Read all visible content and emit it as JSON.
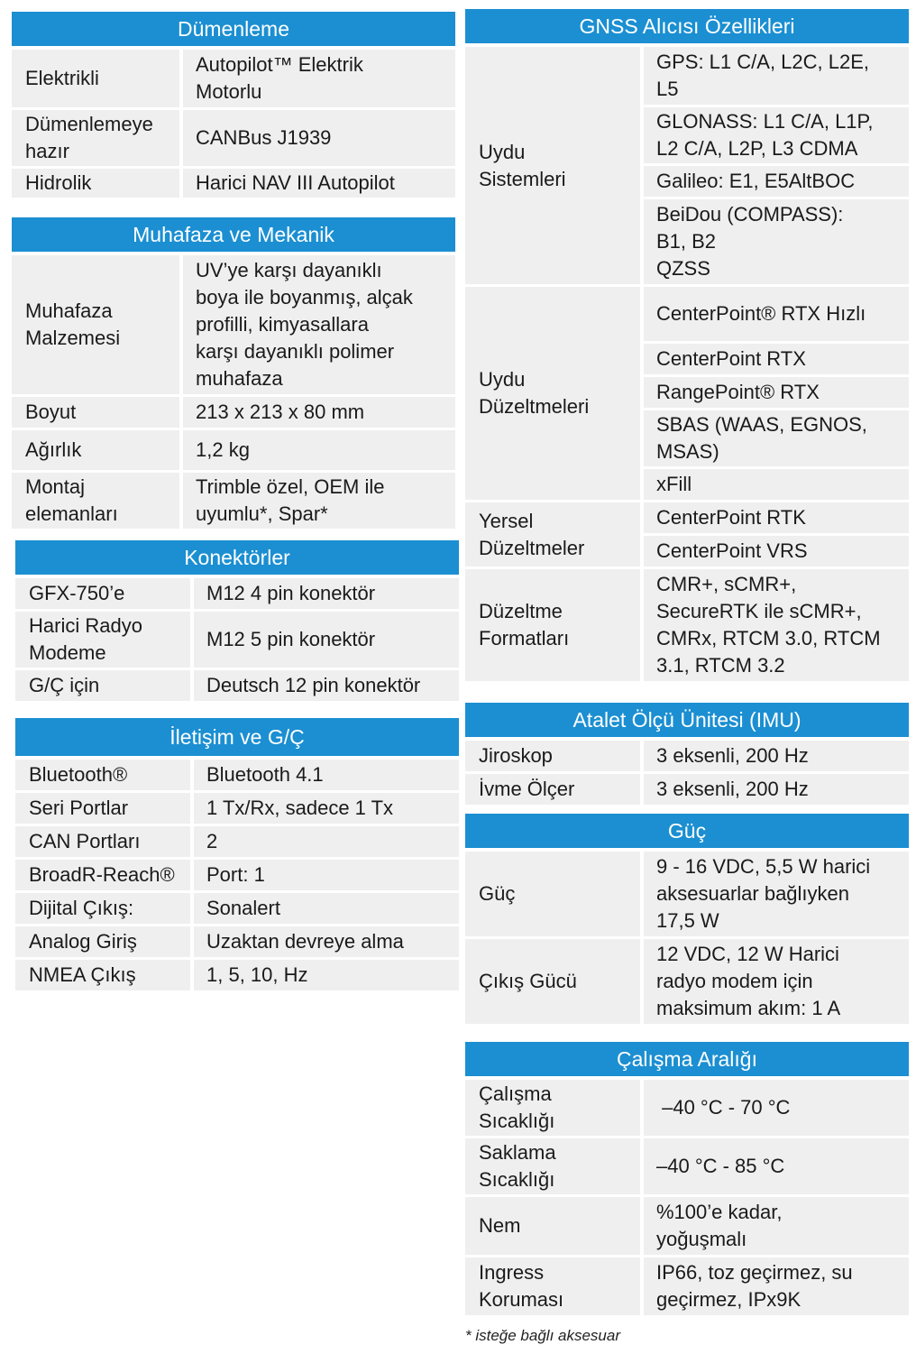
{
  "sections": {
    "dumenleme": {
      "title": "Dümenleme",
      "rows": [
        {
          "k": "Elektrikli",
          "v": [
            "Autopilot™ Elektrik",
            "Motorlu"
          ]
        },
        {
          "k": "Dümenlemeye hazır",
          "v": [
            "CANBus J1939"
          ]
        },
        {
          "k": "Hidrolik",
          "v": [
            "Harici NAV III Autopilot"
          ]
        }
      ]
    },
    "muhafaza": {
      "title": "Muhafaza ve Mekanik",
      "rows": [
        {
          "k": "Muhafaza Malzemesi",
          "v": [
            "UV’ye karşı dayanıklı",
            "boya ile boyanmış, alçak",
            "profilli, kimyasallara",
            "karşı dayanıklı polimer",
            "muhafaza"
          ]
        },
        {
          "k": "Boyut",
          "v": [
            "213 x 213 x 80 mm"
          ]
        },
        {
          "k": "Ağırlık",
          "v": [
            "1,2 kg"
          ]
        },
        {
          "k": "Montaj elemanları",
          "v": [
            "Trimble özel, OEM ile",
            "uyumlu*, Spar*"
          ]
        }
      ]
    },
    "konektorler": {
      "title": "Konektörler",
      "rows": [
        {
          "k": "GFX-750’e",
          "v": [
            "M12 4 pin konektör"
          ]
        },
        {
          "k": "Harici Radyo Modeme",
          "v": [
            "M12 5 pin konektör"
          ]
        },
        {
          "k": "G/Ç için",
          "v": [
            "Deutsch 12 pin konektör"
          ]
        }
      ]
    },
    "iletisim": {
      "title": "İletişim ve G/Ç",
      "rows": [
        {
          "k": "Bluetooth®",
          "v": [
            "Bluetooth 4.1"
          ]
        },
        {
          "k": "Seri Portlar",
          "v": [
            "1 Tx/Rx, sadece 1 Tx"
          ]
        },
        {
          "k": "CAN Portları",
          "v": [
            "2"
          ]
        },
        {
          "k": "BroadR-Reach®",
          "v": [
            "Port: 1"
          ]
        },
        {
          "k": "Dijital Çıkış:",
          "v": [
            "Sonalert"
          ]
        },
        {
          "k": "Analog Giriş",
          "v": [
            "Uzaktan devreye alma"
          ]
        },
        {
          "k": "NMEA Çıkış",
          "v": [
            "1, 5, 10, Hz"
          ]
        }
      ]
    },
    "gnss": {
      "title": "GNSS Alıcısı Özellikleri",
      "groups": [
        {
          "k": "Uydu Sistemleri",
          "vals": [
            [
              "GPS: L1 C/A, L2C, L2E,",
              "L5"
            ],
            [
              "GLONASS: L1 C/A, L1P,",
              "L2 C/A, L2P, L3 CDMA"
            ],
            [
              "Galileo: E1, E5AltBOC"
            ],
            [
              "BeiDou (COMPASS):",
              "B1, B2",
              "QZSS"
            ]
          ]
        },
        {
          "k": "Uydu Düzeltmeleri",
          "vals": [
            [
              "CenterPoint® RTX Hızlı"
            ],
            [
              "CenterPoint RTX"
            ],
            [
              "RangePoint® RTX"
            ],
            [
              "SBAS (WAAS, EGNOS,",
              "MSAS)"
            ],
            [
              "xFill"
            ]
          ]
        },
        {
          "k": "Yersel Düzeltmeler",
          "vals": [
            [
              "CenterPoint RTK"
            ],
            [
              "CenterPoint VRS"
            ]
          ]
        },
        {
          "k": "Düzeltme Formatları",
          "vals": [
            [
              "CMR+,  sCMR+,",
              "SecureRTK ile sCMR+,",
              "CMRx, RTCM 3.0, RTCM",
              "3.1, RTCM 3.2"
            ]
          ]
        }
      ]
    },
    "imu": {
      "title": "Atalet Ölçü Ünitesi (IMU)",
      "rows": [
        {
          "k": "Jiroskop",
          "v": [
            "3 eksenli, 200 Hz"
          ]
        },
        {
          "k": "İvme Ölçer",
          "v": [
            "3 eksenli, 200 Hz"
          ]
        }
      ]
    },
    "guc": {
      "title": "Güç",
      "rows": [
        {
          "k": "Güç",
          "v": [
            "9 - 16 VDC, 5,5 W harici",
            "aksesuarlar bağlıyken",
            "17,5 W"
          ]
        },
        {
          "k": "Çıkış Gücü",
          "v": [
            "12 VDC, 12 W Harici",
            "radyo modem için",
            "maksimum akım: 1 A"
          ]
        }
      ]
    },
    "calisma": {
      "title": "Çalışma Aralığı",
      "rows": [
        {
          "k": "Çalışma Sıcaklığı",
          "v": [
            " –40 °C - 70 °C"
          ]
        },
        {
          "k": "Saklama Sıcaklığı",
          "v": [
            "–40 °C - 85 °C"
          ]
        },
        {
          "k": "Nem",
          "v": [
            "%100’e kadar,",
            "yoğuşmalı"
          ]
        },
        {
          "k": "Ingress Koruması",
          "v": [
            "IP66, toz geçirmez, su",
            "geçirmez, IPx9K"
          ]
        }
      ]
    }
  },
  "footnote": "* isteğe bağlı aksesuar"
}
